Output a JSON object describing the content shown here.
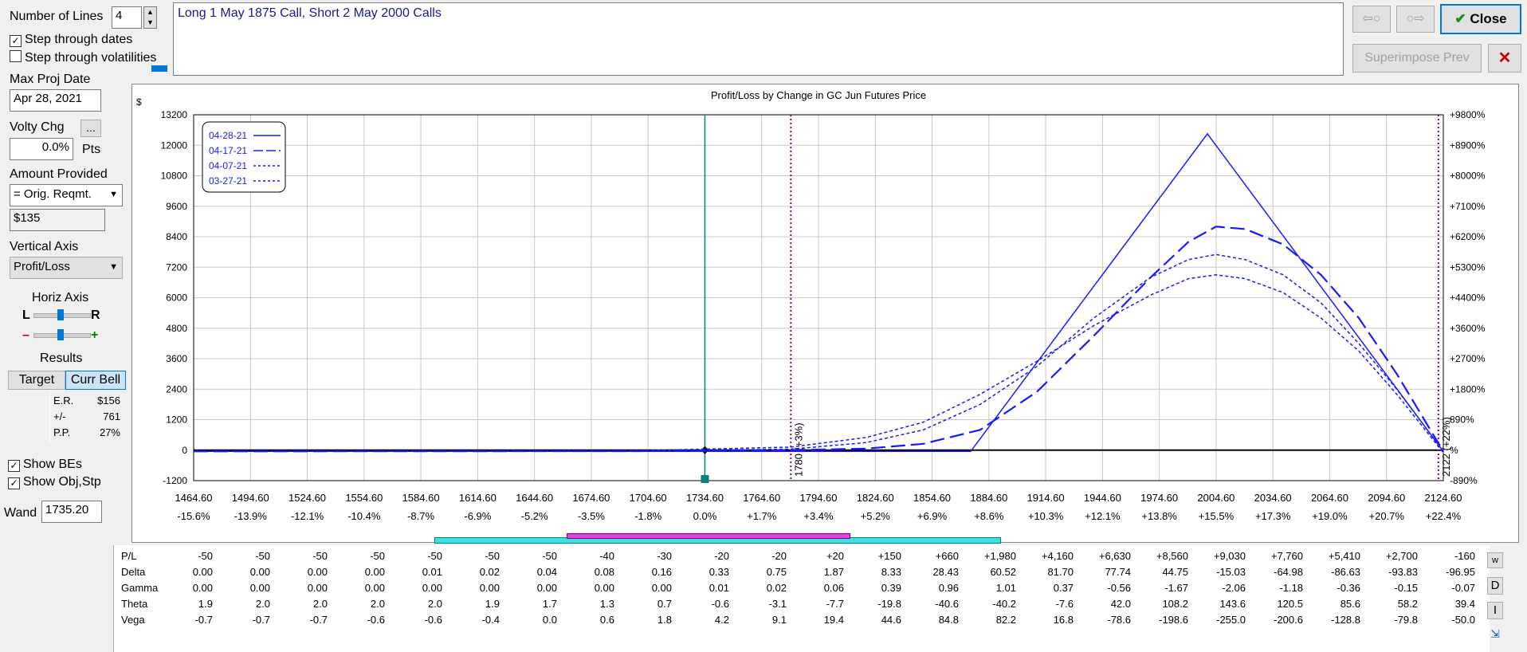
{
  "controls": {
    "number_of_lines_label": "Number of Lines",
    "number_of_lines_value": "4",
    "step_dates_label": "Step through dates",
    "step_dates_checked": true,
    "step_vols_label": "Step through volatilities",
    "step_vols_checked": false,
    "max_proj_date_label": "Max Proj Date",
    "max_proj_date_value": "Apr 28, 2021",
    "volty_chg_label": "Volty Chg",
    "volty_chg_button": "...",
    "volty_chg_value": "0.0%",
    "volty_chg_unit": "Pts",
    "amount_provided_label": "Amount Provided",
    "amount_provided_value": "= Orig. Reqmt.",
    "amount_value": "$135",
    "vertical_axis_label": "Vertical Axis",
    "vertical_axis_value": "Profit/Loss",
    "horiz_axis_label": "Horiz Axis",
    "horiz_l": "L",
    "horiz_r": "R",
    "horiz_minus": "–",
    "horiz_plus": "+",
    "results_label": "Results",
    "target_button": "Target",
    "curr_bell_button": "Curr Bell",
    "results": [
      {
        "label": "E.R.",
        "value": "$156"
      },
      {
        "label": "+/-",
        "value": "761"
      },
      {
        "label": "P.P.",
        "value": "27%"
      }
    ],
    "show_bes_label": "Show BEs",
    "show_bes_checked": true,
    "show_obj_label": "Show Obj,Stp",
    "show_obj_checked": true,
    "wand_label": "Wand",
    "wand_value": "1735.20"
  },
  "description": "Long 1 May 1875 Call, Short 2 May 2000 Calls",
  "top_buttons": {
    "back": "⇦○",
    "forward": "○⇨",
    "close": "Close",
    "superimpose": "Superimpose Prev",
    "delete": "✕"
  },
  "side_buttons": [
    "w",
    "D",
    "I"
  ],
  "colors": {
    "line": "#1a1aff",
    "axis_text": "#000000",
    "center_line": "#0a8080",
    "be_line": "#800080",
    "title_text": "#000000"
  },
  "chart_data": {
    "type": "line",
    "title": "Profit/Loss by Change in GC Jun Futures Price",
    "y_unit": "$",
    "y_right_unit": "%",
    "xlim": [
      1464.6,
      2124.6
    ],
    "ylim": [
      -1200,
      13200
    ],
    "x_ticks": [
      1464.6,
      1494.6,
      1524.6,
      1554.6,
      1584.6,
      1614.6,
      1644.6,
      1674.6,
      1704.6,
      1734.6,
      1764.6,
      1794.6,
      1824.6,
      1854.6,
      1884.6,
      1914.6,
      1944.6,
      1974.6,
      2004.6,
      2034.6,
      2064.6,
      2094.6,
      2124.6
    ],
    "x_tick_labels": [
      "1464.60",
      "1494.60",
      "1524.60",
      "1554.60",
      "1584.60",
      "1614.60",
      "1644.60",
      "1674.60",
      "1704.60",
      "1734.60",
      "1764.60",
      "1794.60",
      "1824.60",
      "1854.60",
      "1884.60",
      "1914.60",
      "1944.60",
      "1974.60",
      "2004.60",
      "2034.60",
      "2064.60",
      "2094.60",
      "2124.60"
    ],
    "x_pct_labels": [
      "-15.6%",
      "-13.9%",
      "-12.1%",
      "-10.4%",
      "-8.7%",
      "-6.9%",
      "-5.2%",
      "-3.5%",
      "-1.8%",
      "0.0%",
      "+1.7%",
      "+3.4%",
      "+5.2%",
      "+6.9%",
      "+8.6%",
      "+10.3%",
      "+12.1%",
      "+13.8%",
      "+15.5%",
      "+17.3%",
      "+19.0%",
      "+20.7%",
      "+22.4%"
    ],
    "y_ticks": [
      -1200,
      0,
      1200,
      2400,
      3600,
      4800,
      6000,
      7200,
      8400,
      9600,
      10800,
      12000,
      13200
    ],
    "y_tick_labels": [
      "-1200",
      "0",
      "1200",
      "2400",
      "3600",
      "4800",
      "6000",
      "7200",
      "8400",
      "9600",
      "10800",
      "12000",
      "13200"
    ],
    "y_right_labels": [
      "-890%",
      "%",
      "890%",
      "+1800%",
      "+2700%",
      "+3600%",
      "+4400%",
      "+5300%",
      "+6200%",
      "+7100%",
      "+8000%",
      "+8900%",
      "+9800%"
    ],
    "grid": true,
    "legend_position": "top-left",
    "current_price": 1734.6,
    "break_evens": [
      {
        "x": 1780,
        "label": "1780 (+3%)"
      },
      {
        "x": 2122,
        "label": "2122 (+22%)"
      }
    ],
    "series": [
      {
        "name": "04-28-21",
        "dash": "solid",
        "points": [
          [
            1464.6,
            -50
          ],
          [
            1875,
            -50
          ],
          [
            2000,
            12450
          ],
          [
            2124.6,
            -50
          ]
        ]
      },
      {
        "name": "04-17-21",
        "dash": "long",
        "points": [
          [
            1464.6,
            -50
          ],
          [
            1700,
            -40
          ],
          [
            1780,
            0
          ],
          [
            1820,
            60
          ],
          [
            1850,
            250
          ],
          [
            1880,
            800
          ],
          [
            1910,
            2300
          ],
          [
            1940,
            4500
          ],
          [
            1970,
            6800
          ],
          [
            1990,
            8200
          ],
          [
            2004.6,
            8800
          ],
          [
            2020,
            8700
          ],
          [
            2040,
            8100
          ],
          [
            2060,
            6900
          ],
          [
            2080,
            5200
          ],
          [
            2100,
            3000
          ],
          [
            2124.6,
            -50
          ]
        ]
      },
      {
        "name": "04-07-21",
        "dash": "short",
        "points": [
          [
            1464.6,
            -50
          ],
          [
            1700,
            -30
          ],
          [
            1780,
            40
          ],
          [
            1820,
            300
          ],
          [
            1850,
            800
          ],
          [
            1880,
            1800
          ],
          [
            1910,
            3300
          ],
          [
            1940,
            5200
          ],
          [
            1970,
            6800
          ],
          [
            1990,
            7500
          ],
          [
            2004.6,
            7700
          ],
          [
            2020,
            7500
          ],
          [
            2040,
            6900
          ],
          [
            2060,
            5800
          ],
          [
            2080,
            4200
          ],
          [
            2100,
            2400
          ],
          [
            2124.6,
            -50
          ]
        ]
      },
      {
        "name": "03-27-21",
        "dash": "short",
        "points": [
          [
            1464.6,
            -50
          ],
          [
            1700,
            -20
          ],
          [
            1780,
            120
          ],
          [
            1820,
            500
          ],
          [
            1850,
            1100
          ],
          [
            1880,
            2200
          ],
          [
            1910,
            3500
          ],
          [
            1940,
            4900
          ],
          [
            1970,
            6100
          ],
          [
            1990,
            6750
          ],
          [
            2004.6,
            6900
          ],
          [
            2020,
            6750
          ],
          [
            2040,
            6200
          ],
          [
            2060,
            5200
          ],
          [
            2080,
            3900
          ],
          [
            2100,
            2200
          ],
          [
            2124.6,
            -100
          ]
        ]
      }
    ]
  },
  "greeks": {
    "rows": [
      {
        "label": "P/L",
        "values": [
          "-50",
          "-50",
          "-50",
          "-50",
          "-50",
          "-50",
          "-50",
          "-40",
          "-30",
          "-20",
          "-20",
          "+20",
          "+150",
          "+660",
          "+1,980",
          "+4,160",
          "+6,630",
          "+8,560",
          "+9,030",
          "+7,760",
          "+5,410",
          "+2,700",
          "-160"
        ]
      },
      {
        "label": "Delta",
        "values": [
          "0.00",
          "0.00",
          "0.00",
          "0.00",
          "0.01",
          "0.02",
          "0.04",
          "0.08",
          "0.16",
          "0.33",
          "0.75",
          "1.87",
          "8.33",
          "28.43",
          "60.52",
          "81.70",
          "77.74",
          "44.75",
          "-15.03",
          "-64.98",
          "-86.63",
          "-93.83",
          "-96.95"
        ]
      },
      {
        "label": "Gamma",
        "values": [
          "0.00",
          "0.00",
          "0.00",
          "0.00",
          "0.00",
          "0.00",
          "0.00",
          "0.00",
          "0.00",
          "0.01",
          "0.02",
          "0.06",
          "0.39",
          "0.96",
          "1.01",
          "0.37",
          "-0.56",
          "-1.67",
          "-2.06",
          "-1.18",
          "-0.36",
          "-0.15",
          "-0.07"
        ]
      },
      {
        "label": "Theta",
        "values": [
          "1.9",
          "2.0",
          "2.0",
          "2.0",
          "2.0",
          "1.9",
          "1.7",
          "1.3",
          "0.7",
          "-0.6",
          "-3.1",
          "-7.7",
          "-19.8",
          "-40.6",
          "-40.2",
          "-7.6",
          "42.0",
          "108.2",
          "143.6",
          "120.5",
          "85.6",
          "58.2",
          "39.4"
        ]
      },
      {
        "label": "Vega",
        "values": [
          "-0.7",
          "-0.7",
          "-0.7",
          "-0.6",
          "-0.6",
          "-0.4",
          "0.0",
          "0.6",
          "1.8",
          "4.2",
          "9.1",
          "19.4",
          "44.6",
          "84.8",
          "82.2",
          "16.8",
          "-78.6",
          "-198.6",
          "-255.0",
          "-200.6",
          "-128.8",
          "-79.8",
          "-50.0"
        ]
      }
    ]
  }
}
